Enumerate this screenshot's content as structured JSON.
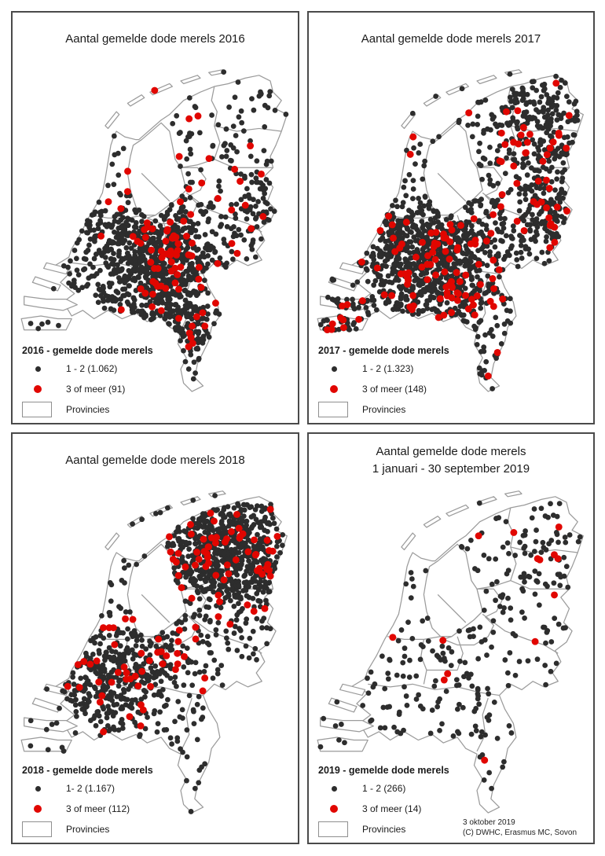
{
  "colors": {
    "dot_dark": "#2d2d2d",
    "dot_red": "#e10600",
    "map_outline": "#9b9b9b",
    "panel_border": "#4a4a4a",
    "text": "#1a1a1a"
  },
  "panels": [
    {
      "year": "2016",
      "title_line1": "Aantal gemelde dode merels 2016",
      "title_line2": "",
      "legend": {
        "title": "2016 - gemelde dode merels",
        "small": {
          "label": "1 - 2 (1.062)",
          "count": 1062
        },
        "large": {
          "label": "3 of meer (91)",
          "count": 91
        },
        "provinces_label": "Provincies"
      },
      "scatter": {
        "seed": 101,
        "base": 0.3,
        "hotspots": [
          {
            "x": 52,
            "y": 63,
            "r": 9,
            "w": 2.5
          },
          {
            "x": 47,
            "y": 79,
            "r": 10,
            "w": 2.2
          },
          {
            "x": 56,
            "y": 88,
            "r": 7,
            "w": 1.8
          },
          {
            "x": 66,
            "y": 97,
            "r": 7,
            "w": 1.5
          },
          {
            "x": 30,
            "y": 63,
            "r": 8,
            "w": 1.2
          },
          {
            "x": 85,
            "y": 52,
            "r": 8,
            "w": 1.0
          },
          {
            "x": 62,
            "y": 70,
            "r": 8,
            "w": 1.5
          }
        ],
        "red_base": 0.12,
        "red_hotspots": [
          {
            "x": 52,
            "y": 66,
            "r": 8,
            "w": 2.5
          },
          {
            "x": 50,
            "y": 83,
            "r": 8,
            "w": 2.0
          },
          {
            "x": 64,
            "y": 97,
            "r": 6,
            "w": 1.8
          },
          {
            "x": 84,
            "y": 52,
            "r": 8,
            "w": 0.9
          },
          {
            "x": 55,
            "y": 45,
            "r": 14,
            "w": 0.4
          }
        ]
      }
    },
    {
      "year": "2017",
      "title_line1": "Aantal gemelde dode merels 2017",
      "title_line2": "",
      "legend": {
        "title": "2017 - gemelde dode merels",
        "small": {
          "label": "1 - 2 (1.323)",
          "count": 1323
        },
        "large": {
          "label": "3 of meer (148)",
          "count": 148
        },
        "provinces_label": "Provincies"
      },
      "scatter": {
        "seed": 202,
        "base": 0.55,
        "hotspots": [
          {
            "x": 48,
            "y": 64,
            "r": 10,
            "w": 2.0
          },
          {
            "x": 30,
            "y": 62,
            "r": 9,
            "w": 1.8
          },
          {
            "x": 45,
            "y": 81,
            "r": 11,
            "w": 1.8
          },
          {
            "x": 86,
            "y": 54,
            "r": 7,
            "w": 1.8
          },
          {
            "x": 80,
            "y": 15,
            "r": 7,
            "w": 1.4
          },
          {
            "x": 14,
            "y": 88,
            "r": 9,
            "w": 1.4
          },
          {
            "x": 88,
            "y": 30,
            "r": 9,
            "w": 1.0
          }
        ],
        "red_base": 0.2,
        "red_hotspots": [
          {
            "x": 44,
            "y": 70,
            "r": 10,
            "w": 1.8
          },
          {
            "x": 12,
            "y": 90,
            "r": 8,
            "w": 1.8
          },
          {
            "x": 87,
            "y": 55,
            "r": 6,
            "w": 1.8
          },
          {
            "x": 52,
            "y": 84,
            "r": 10,
            "w": 1.4
          },
          {
            "x": 80,
            "y": 30,
            "r": 10,
            "w": 0.8
          }
        ]
      }
    },
    {
      "year": "2018",
      "title_line1": "Aantal gemelde dode merels 2018",
      "title_line2": "",
      "legend": {
        "title": "2018 - gemelde dode merels",
        "small": {
          "label": "1- 2 (1.167)",
          "count": 1167
        },
        "large": {
          "label": "3 of meer (112)",
          "count": 112
        },
        "provinces_label": "Provincies"
      },
      "scatter": {
        "seed": 303,
        "base": 0.4,
        "hotspots": [
          {
            "x": 62,
            "y": 17,
            "r": 11,
            "w": 2.2
          },
          {
            "x": 80,
            "y": 22,
            "r": 10,
            "w": 2.4
          },
          {
            "x": 84,
            "y": 34,
            "r": 9,
            "w": 2.0
          },
          {
            "x": 70,
            "y": 30,
            "r": 10,
            "w": 1.8
          },
          {
            "x": 48,
            "y": 62,
            "r": 8,
            "w": 2.0
          },
          {
            "x": 30,
            "y": 66,
            "r": 9,
            "w": 1.4
          },
          {
            "x": 34,
            "y": 78,
            "r": 9,
            "w": 1.0
          }
        ],
        "red_base": 0.18,
        "red_hotspots": [
          {
            "x": 70,
            "y": 18,
            "r": 12,
            "w": 2.0
          },
          {
            "x": 84,
            "y": 33,
            "r": 9,
            "w": 1.5
          },
          {
            "x": 48,
            "y": 62,
            "r": 7,
            "w": 1.8
          },
          {
            "x": 30,
            "y": 72,
            "r": 9,
            "w": 1.0
          },
          {
            "x": 58,
            "y": 42,
            "r": 16,
            "w": 0.5
          }
        ]
      }
    },
    {
      "year": "2019",
      "title_line1": "Aantal gemelde dode merels",
      "title_line2": "1 januari - 30 september 2019",
      "legend": {
        "title": "2019 - gemelde dode merels",
        "small": {
          "label": "1 - 2 (266)",
          "count": 266
        },
        "large": {
          "label": "3 of meer (14)",
          "count": 14
        },
        "provinces_label": "Provincies"
      },
      "scatter": {
        "seed": 404,
        "base": 1.0,
        "hotspots": [
          {
            "x": 50,
            "y": 64,
            "r": 9,
            "w": 1.0
          },
          {
            "x": 83,
            "y": 25,
            "r": 11,
            "w": 0.6
          },
          {
            "x": 46,
            "y": 80,
            "r": 11,
            "w": 0.5
          }
        ],
        "red_base": 0.6,
        "red_hotspots": [
          {
            "x": 49,
            "y": 67,
            "r": 9,
            "w": 1.2
          }
        ]
      }
    }
  ],
  "footer": {
    "date_label": "3 oktober 2019",
    "credit_label": "(C) DWHC, Erasmus MC, Sovon"
  }
}
